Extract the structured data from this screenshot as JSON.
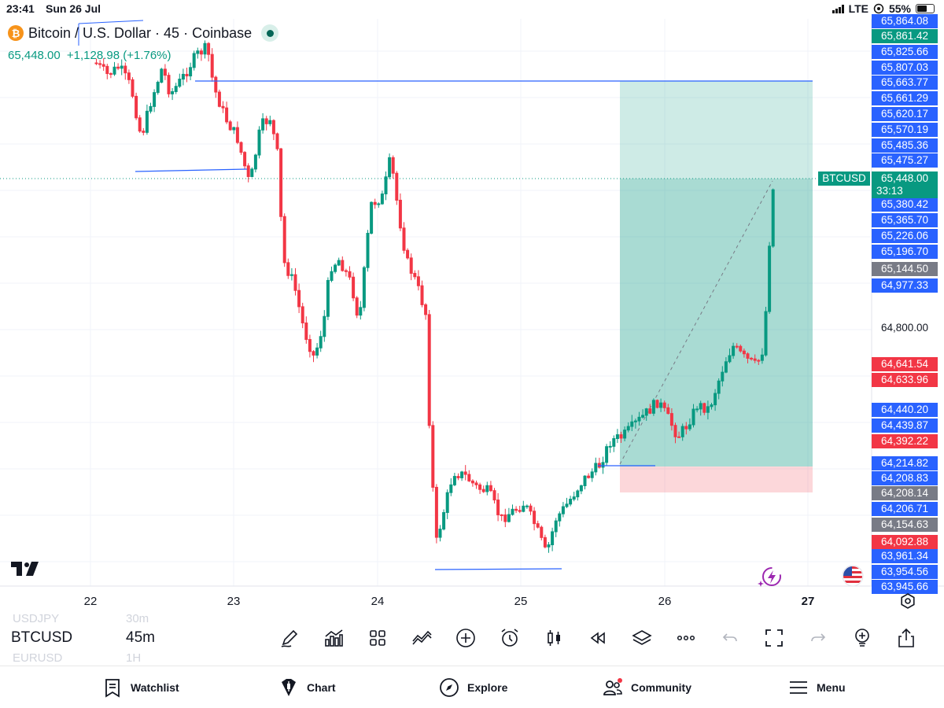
{
  "status_bar": {
    "time": "23:41",
    "date": "Sun 26 Jul",
    "network": "LTE",
    "battery": "55%"
  },
  "header": {
    "symbol_title": "Bitcoin / U.S. Dollar · 45 · Coinbase",
    "last_price": "65,448.00",
    "change": "+1,128.98 (+1.76%)",
    "logo_glyph": "₿"
  },
  "price_axis": {
    "current_symbol": "BTCUSD",
    "countdown": "33:13",
    "labels": [
      {
        "text": "65,864.08",
        "color": "#2962ff"
      },
      {
        "text": "65,861.42",
        "color": "#089981"
      },
      {
        "text": "65,825.66",
        "color": "#2962ff"
      },
      {
        "text": "65,807.03",
        "color": "#2962ff"
      },
      {
        "text": "65,663.77",
        "color": "#2962ff"
      },
      {
        "text": "65,661.29",
        "color": "#2962ff"
      },
      {
        "text": "65,620.17",
        "color": "#2962ff"
      },
      {
        "text": "65,570.19",
        "color": "#2962ff"
      },
      {
        "text": "65,485.36",
        "color": "#2962ff"
      },
      {
        "text": "65,475.27",
        "color": "#2962ff"
      },
      {
        "text": "65,448.00",
        "color": "#089981"
      },
      {
        "text": "65,380.42",
        "color": "#2962ff"
      },
      {
        "text": "65,365.70",
        "color": "#2962ff"
      },
      {
        "text": "65,226.06",
        "color": "#2962ff"
      },
      {
        "text": "65,196.70",
        "color": "#2962ff"
      },
      {
        "text": "65,144.50",
        "color": "#787b86"
      },
      {
        "text": "64,977.33",
        "color": "#2962ff"
      },
      {
        "text": "64,800.00",
        "color": "plain"
      },
      {
        "text": "64,641.54",
        "color": "#f23645"
      },
      {
        "text": "64,633.96",
        "color": "#f23645"
      },
      {
        "text": "64,440.20",
        "color": "#2962ff"
      },
      {
        "text": "64,439.87",
        "color": "#2962ff"
      },
      {
        "text": "64,392.22",
        "color": "#f23645"
      },
      {
        "text": "64,214.82",
        "color": "#2962ff"
      },
      {
        "text": "64,208.83",
        "color": "#2962ff"
      },
      {
        "text": "64,208.14",
        "color": "#787b86"
      },
      {
        "text": "64,206.71",
        "color": "#2962ff"
      },
      {
        "text": "64,154.63",
        "color": "#787b86"
      },
      {
        "text": "64,092.88",
        "color": "#f23645"
      },
      {
        "text": "63,961.34",
        "color": "#2962ff"
      },
      {
        "text": "63,954.56",
        "color": "#2962ff"
      },
      {
        "text": "63,945.66",
        "color": "#2962ff"
      }
    ]
  },
  "time_axis": {
    "labels": [
      {
        "text": "22",
        "bold": false
      },
      {
        "text": "23",
        "bold": false
      },
      {
        "text": "24",
        "bold": false
      },
      {
        "text": "25",
        "bold": false
      },
      {
        "text": "26",
        "bold": false
      },
      {
        "text": "27",
        "bold": true
      }
    ]
  },
  "chart_data": {
    "type": "candlestick",
    "symbol": "BTCUSD",
    "interval": "45m",
    "exchange": "Coinbase",
    "x_ticks": [
      "22",
      "23",
      "24",
      "25",
      "26",
      "27"
    ],
    "y_range": [
      63950,
      65870
    ],
    "last_price": 65448.0,
    "position_tool": {
      "type": "long",
      "entry": 64214.82,
      "take_profit": 65663.77,
      "stop_loss": 64092.88
    },
    "colors": {
      "up": "#089981",
      "down": "#f23645",
      "drawing": "#2962ff"
    }
  },
  "symbol_switcher": {
    "items": [
      {
        "symbol": "USDJPY",
        "tf": "30m"
      },
      {
        "symbol": "BTCUSD",
        "tf": "45m"
      },
      {
        "symbol": "EURUSD",
        "tf": "1H"
      }
    ]
  },
  "toolbar": {
    "icons": [
      "pencil-icon",
      "indicators-icon",
      "grid-icon",
      "compare-icon",
      "add-icon",
      "alarm-icon",
      "candles-icon",
      "replay-icon",
      "layers-icon",
      "more-icon",
      "undo-icon",
      "fullscreen-icon",
      "redo-icon",
      "idea-icon",
      "share-icon"
    ]
  },
  "nav": {
    "watchlist": "Watchlist",
    "chart": "Chart",
    "explore": "Explore",
    "community": "Community",
    "menu": "Menu"
  }
}
